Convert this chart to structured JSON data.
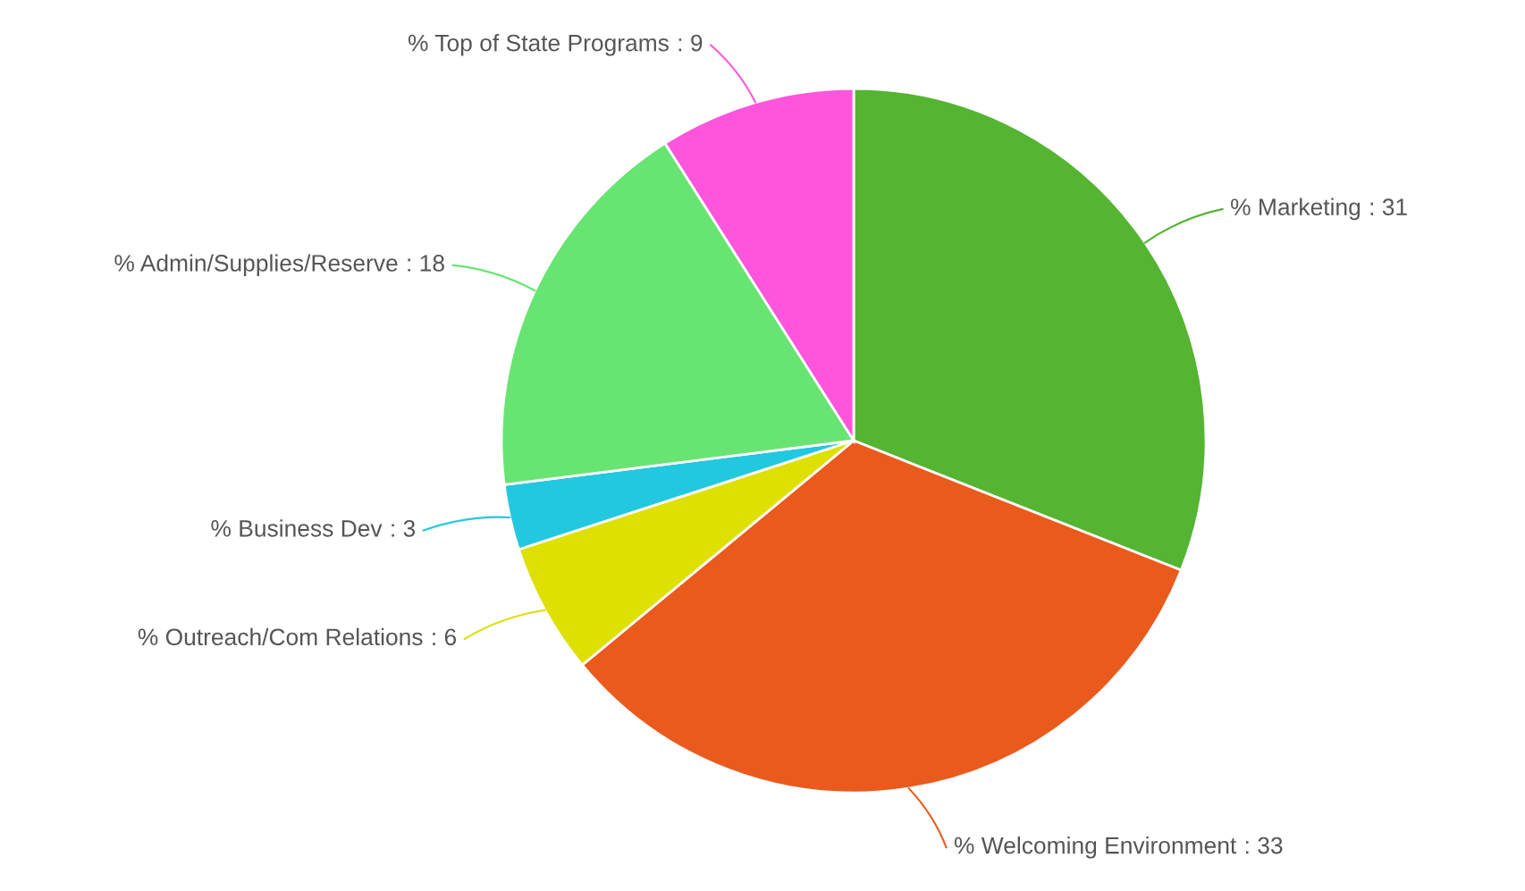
{
  "chart_data": {
    "type": "pie",
    "categories": [
      "% Marketing",
      "% Welcoming Environment",
      "% Outreach/Com Relations",
      "% Business Dev",
      "% Admin/Supplies/Reserve",
      "% Top of State Programs"
    ],
    "values": [
      31,
      33,
      6,
      3,
      18,
      9
    ],
    "colors": [
      "#55b432",
      "#ea5a1c",
      "#dde000",
      "#22c8e0",
      "#68e472",
      "#ff55dd"
    ],
    "value_labels": [
      ": 31",
      ": 33",
      ": 6",
      ": 3",
      ": 18",
      ": 9"
    ]
  }
}
